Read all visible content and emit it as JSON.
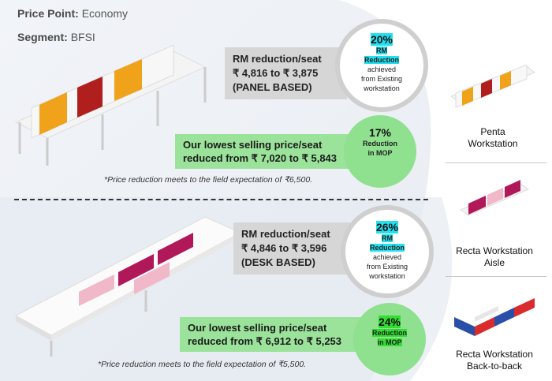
{
  "header": {
    "price_point_label": "Price Point:",
    "price_point_value": "Economy",
    "segment_label": "Segment:",
    "segment_value": "BFSI"
  },
  "panel": {
    "rm_line1": "RM reduction/seat",
    "rm_line2": "₹ 4,816  to ₹ 3,875",
    "rm_line3": "(PANEL BASED)",
    "rm_pct": "20%",
    "rm_hl1": "RM",
    "rm_hl2": "Reduction",
    "rm_t1": "achieved",
    "rm_t2": "from Existing",
    "rm_t3": "workstation",
    "mop_line1": "Our lowest selling price/seat",
    "mop_line2": "reduced from ₹ 7,020  to ₹ 5,843",
    "mop_pct": "17%",
    "mop_hl1": "Reduction",
    "mop_hl2": "in MOP",
    "note": "*Price reduction meets to the field expectation of ₹6,500."
  },
  "desk": {
    "rm_line1": "RM reduction/seat",
    "rm_line2": "₹ 4,846  to ₹ 3,596",
    "rm_line3": "(DESK BASED)",
    "rm_pct": "26%",
    "rm_hl1": "RM",
    "rm_hl2": "Reduction",
    "rm_t1": "achieved",
    "rm_t2": "from Existing",
    "rm_t3": "workstation",
    "mop_line1": "Our lowest selling price/seat",
    "mop_line2": "reduced from ₹ 6,912  to ₹ 5,253",
    "mop_pct": "24%",
    "mop_hl1": "Reduction",
    "mop_hl2": "in MOP",
    "note": "*Price reduction meets to the field expectation of ₹5,500."
  },
  "sidebar": [
    {
      "line1": "Penta",
      "line2": "Workstation"
    },
    {
      "line1": "Recta Workstation",
      "line2": "Aisle"
    },
    {
      "line1": "Recta Workstation",
      "line2": "Back-to-back"
    }
  ]
}
